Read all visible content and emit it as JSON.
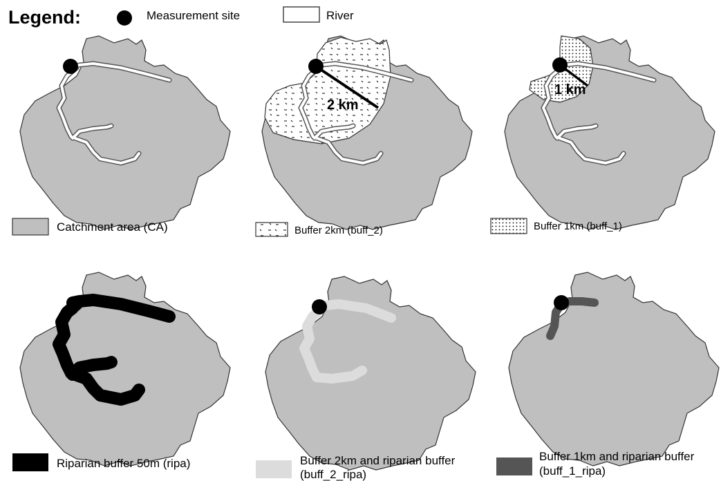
{
  "legend": {
    "title": "Legend:",
    "site_label": "Measurement site",
    "river_label": "River"
  },
  "panels": [
    {
      "id": "ca",
      "label": "Catchment area (CA)"
    },
    {
      "id": "buff_2",
      "label": "Buffer 2km (buff_2)",
      "radius_label": "2 km"
    },
    {
      "id": "buff_1",
      "label": "Buffer 1km (buff_1)",
      "radius_label": "1 km"
    },
    {
      "id": "ripa",
      "label": "Riparian buffer 50m (ripa)"
    },
    {
      "id": "buff_2_ripa",
      "label_line1": "Buffer 2km and riparian buffer",
      "label_line2": "(buff_2_ripa)"
    },
    {
      "id": "buff_1_ripa",
      "label_line1": "Buffer 1km and riparian buffer",
      "label_line2": "(buff_1_ripa)"
    }
  ],
  "colors": {
    "catchment": "#bfbfbf",
    "ripa": "#000000",
    "buff_2_ripa": "#dcdcdc",
    "buff_1_ripa": "#555555",
    "site": "#000000"
  }
}
